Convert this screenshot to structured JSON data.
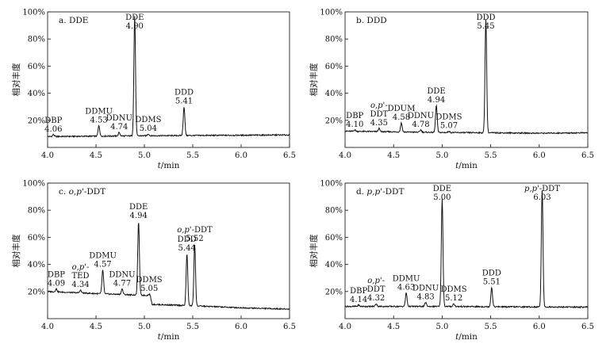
{
  "chart_data": [
    {
      "type": "line",
      "title": "a. DDE",
      "ylabel": "相对丰度",
      "xlabel": "t/min",
      "xlim": [
        4.0,
        6.5
      ],
      "ylim": [
        0,
        100
      ],
      "xticks": [
        "4.0",
        "4.5",
        "5.0",
        "5.5",
        "6.0",
        "6.5"
      ],
      "yticks": [
        "20%",
        "40%",
        "60%",
        "80%",
        "100%"
      ],
      "baseline": [
        [
          4.0,
          8.0
        ],
        [
          4.5,
          8.3
        ],
        [
          5.0,
          8.6
        ],
        [
          5.5,
          8.8
        ],
        [
          6.0,
          9.0
        ],
        [
          6.5,
          9.2
        ]
      ],
      "peaks": [
        {
          "label": [
            "DBP",
            "4.06"
          ],
          "x": 4.06,
          "height": 9.5
        },
        {
          "label": [
            "DDMU",
            "4.53"
          ],
          "x": 4.53,
          "height": 16
        },
        {
          "label": [
            "DDNU",
            "4.74"
          ],
          "x": 4.74,
          "height": 11
        },
        {
          "label": [
            "DDE",
            "4.90"
          ],
          "x": 4.9,
          "height": 97
        },
        {
          "label": [
            "DDMS",
            "5.04"
          ],
          "x": 5.04,
          "height": 10
        },
        {
          "label": [
            "DDD",
            "5.41"
          ],
          "x": 5.41,
          "height": 30
        }
      ]
    },
    {
      "type": "line",
      "title": "b. DDD",
      "ylabel": "相对丰度",
      "xlabel": "t/min",
      "xlim": [
        4.0,
        6.5
      ],
      "ylim": [
        0,
        100
      ],
      "xticks": [
        "4.0",
        "4.5",
        "5.0",
        "5.5",
        "6.0",
        "6.5"
      ],
      "yticks": [
        "20%",
        "40%",
        "60%",
        "80%",
        "100%"
      ],
      "baseline": [
        [
          4.0,
          12.0
        ],
        [
          4.5,
          11.5
        ],
        [
          5.0,
          11.0
        ],
        [
          5.5,
          10.8
        ],
        [
          6.0,
          10.5
        ],
        [
          6.5,
          10.8
        ]
      ],
      "peaks": [
        {
          "label": [
            "DBP",
            "4.10"
          ],
          "x": 4.1,
          "height": 13
        },
        {
          "label": [
            "o,p'-",
            "DDT",
            "4.35"
          ],
          "x": 4.35,
          "height": 14
        },
        {
          "label": [
            "DDUM",
            "4.58"
          ],
          "x": 4.58,
          "height": 18
        },
        {
          "label": [
            "DDNU",
            "4.78"
          ],
          "x": 4.78,
          "height": 13
        },
        {
          "label": [
            "DDE",
            "4.94"
          ],
          "x": 4.94,
          "height": 31
        },
        {
          "label": [
            "DDMS",
            "5.07"
          ],
          "x": 5.07,
          "height": 12
        },
        {
          "label": [
            "DDD",
            "5.45"
          ],
          "x": 5.45,
          "height": 95
        }
      ]
    },
    {
      "type": "line",
      "title": "c. o,p'-DDT",
      "ylabel": "相对丰度",
      "xlabel": "t/min",
      "xlim": [
        4.0,
        6.5
      ],
      "ylim": [
        0,
        100
      ],
      "xticks": [
        "4.0",
        "4.5",
        "5.0",
        "5.5",
        "6.0",
        "6.5"
      ],
      "yticks": [
        "20%",
        "40%",
        "60%",
        "80%",
        "100%"
      ],
      "baseline": [
        [
          4.0,
          20.0
        ],
        [
          4.5,
          18.5
        ],
        [
          4.9,
          17.5
        ],
        [
          5.06,
          17.0
        ],
        [
          5.08,
          10.5
        ],
        [
          5.5,
          9.5
        ],
        [
          6.0,
          8.0
        ],
        [
          6.5,
          7.0
        ]
      ],
      "peaks": [
        {
          "label": [
            "DBP",
            "4.09"
          ],
          "x": 4.09,
          "height": 22
        },
        {
          "label": [
            "o,p'-",
            "TED",
            "4.34"
          ],
          "x": 4.34,
          "height": 21
        },
        {
          "label": [
            "DDMU",
            "4.57"
          ],
          "x": 4.57,
          "height": 36
        },
        {
          "label": [
            "DDNU",
            "4.77"
          ],
          "x": 4.77,
          "height": 22
        },
        {
          "label": [
            "DDE",
            "4.94"
          ],
          "x": 4.94,
          "height": 72
        },
        {
          "label": [
            "DDMS",
            "5.05"
          ],
          "x": 5.05,
          "height": 18
        },
        {
          "label": [
            "DDD",
            "5.44"
          ],
          "x": 5.44,
          "height": 48
        },
        {
          "label": [
            "o,p'-DDT",
            "5.52"
          ],
          "x": 5.52,
          "height": 55
        }
      ]
    },
    {
      "type": "line",
      "title": "d. p,p'-DDT",
      "ylabel": "相对丰度",
      "xlabel": "t/min",
      "xlim": [
        4.0,
        6.5
      ],
      "ylim": [
        0,
        100
      ],
      "xticks": [
        "4.0",
        "4.5",
        "5.0",
        "5.5",
        "6.0",
        "6.5"
      ],
      "yticks": [
        "20%",
        "40%",
        "60%",
        "80%",
        "100%"
      ],
      "baseline": [
        [
          4.0,
          9.0
        ],
        [
          4.5,
          9.0
        ],
        [
          5.0,
          9.0
        ],
        [
          5.5,
          8.8
        ],
        [
          6.0,
          8.6
        ],
        [
          6.5,
          8.5
        ]
      ],
      "peaks": [
        {
          "label": [
            "DBP",
            "4.14"
          ],
          "x": 4.14,
          "height": 10
        },
        {
          "label": [
            "o,p'-",
            "DDT",
            "4.32"
          ],
          "x": 4.32,
          "height": 11
        },
        {
          "label": [
            "DDMU",
            "4.63"
          ],
          "x": 4.63,
          "height": 19
        },
        {
          "label": [
            "DDNU",
            "4.83"
          ],
          "x": 4.83,
          "height": 12
        },
        {
          "label": [
            "DDE",
            "5.00"
          ],
          "x": 5.0,
          "height": 88
        },
        {
          "label": [
            "DDMS",
            "5.12"
          ],
          "x": 5.12,
          "height": 11
        },
        {
          "label": [
            "DDD",
            "5.51"
          ],
          "x": 5.51,
          "height": 23
        },
        {
          "label": [
            "p,p'-DDT",
            "6.03"
          ],
          "x": 6.03,
          "height": 95
        }
      ]
    }
  ]
}
